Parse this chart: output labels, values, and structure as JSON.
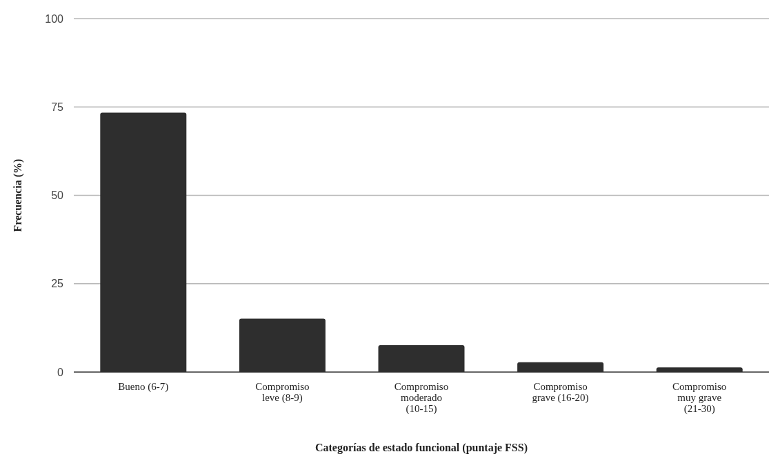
{
  "chart_data": {
    "type": "bar",
    "xlabel": "Categorías de estado funcional (puntaje FSS)",
    "ylabel": "Frecuencia (%)",
    "categories": [
      "Bueno (6-7)",
      "Compromiso leve (8-9)",
      "Compromiso moderado (10-15)",
      "Compromiso grave (16-20)",
      "Compromiso muy grave (21-30)"
    ],
    "values": [
      73.4,
      15.1,
      7.6,
      2.8,
      1.3
    ],
    "color": "#2e2e2e",
    "ylim": [
      0,
      100
    ],
    "yticks": [
      0,
      25,
      50,
      75,
      100
    ],
    "grid": "y"
  }
}
